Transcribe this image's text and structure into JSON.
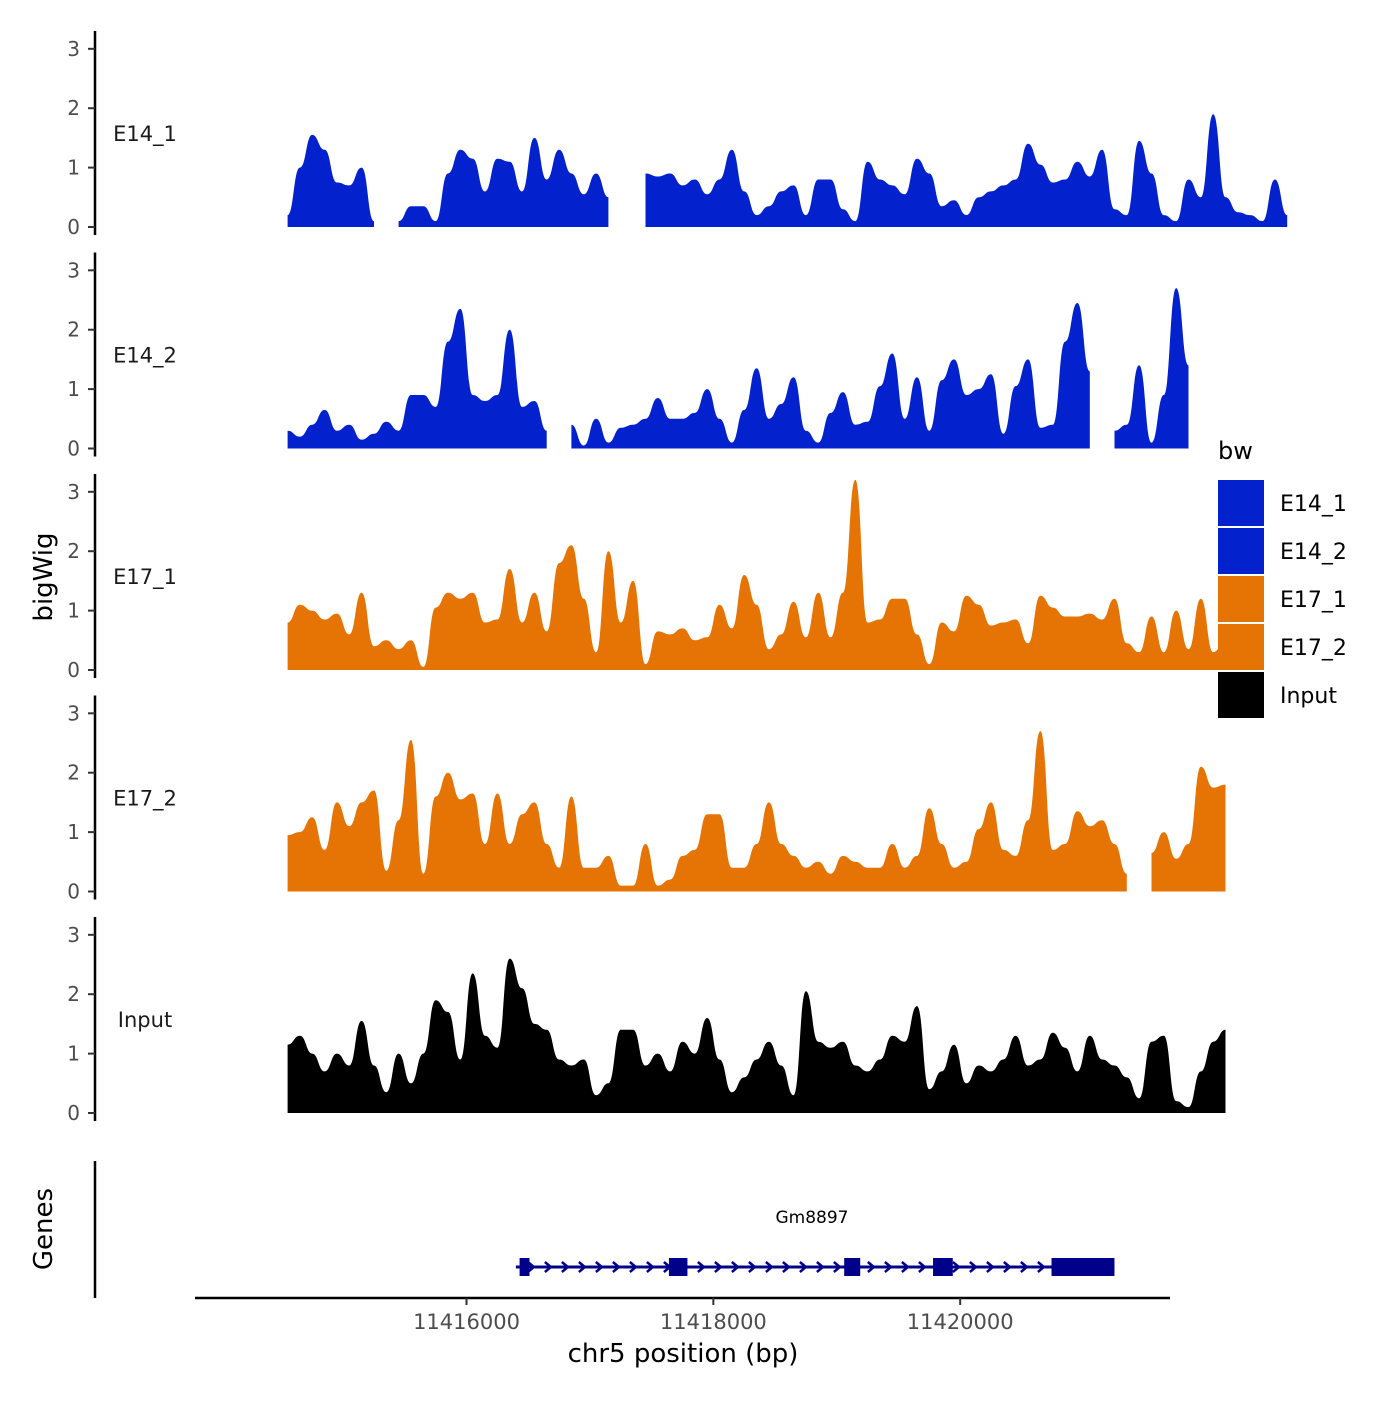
{
  "chart_data": {
    "type": "area",
    "ylabel": "bigWig",
    "xlabel": "chr5 position (bp)",
    "genes_label": "Genes",
    "ylim": [
      0,
      3.3
    ],
    "y_ticks": [
      "0",
      "1",
      "2",
      "3"
    ],
    "x_range": [
      11413800,
      11421700
    ],
    "x_ticks": [
      {
        "value": 11416000,
        "label": "11416000"
      },
      {
        "value": 11418000,
        "label": "11418000"
      },
      {
        "value": 11420000,
        "label": "11420000"
      }
    ],
    "track_start": 11414550,
    "track_step": 100,
    "legend": {
      "title": "bw",
      "entries": [
        {
          "label": "E14_1",
          "color": "#0322CD"
        },
        {
          "label": "E14_2",
          "color": "#0322CD"
        },
        {
          "label": "E17_1",
          "color": "#E57405"
        },
        {
          "label": "E17_2",
          "color": "#E57405"
        },
        {
          "label": "Input",
          "color": "#000000"
        }
      ]
    },
    "series": [
      {
        "name": "E14_1",
        "color": "#0322CD",
        "values": [
          0.2,
          1.0,
          1.55,
          1.3,
          0.75,
          0.7,
          1.0,
          0.1,
          null,
          0.1,
          0.35,
          0.35,
          0.1,
          0.9,
          1.3,
          1.15,
          0.6,
          1.15,
          1.1,
          0.6,
          1.5,
          0.8,
          1.3,
          0.9,
          0.55,
          0.9,
          0.5,
          null,
          null,
          0.9,
          0.85,
          0.9,
          0.7,
          0.8,
          0.55,
          0.8,
          1.3,
          0.6,
          0.2,
          0.35,
          0.6,
          0.7,
          0.2,
          0.8,
          0.8,
          0.3,
          0.1,
          1.1,
          0.8,
          0.7,
          0.55,
          1.15,
          0.9,
          0.35,
          0.45,
          0.2,
          0.5,
          0.6,
          0.7,
          0.8,
          1.4,
          1.05,
          0.75,
          0.8,
          1.1,
          0.85,
          1.3,
          0.3,
          0.2,
          1.45,
          0.9,
          0.2,
          0.1,
          0.8,
          0.5,
          1.9,
          0.5,
          0.25,
          0.2,
          0.1,
          0.8,
          0.2
        ]
      },
      {
        "name": "E14_2",
        "color": "#0322CD",
        "values": [
          0.3,
          0.2,
          0.4,
          0.65,
          0.3,
          0.4,
          0.15,
          0.25,
          0.45,
          0.3,
          0.9,
          0.9,
          0.7,
          1.8,
          2.35,
          0.9,
          0.8,
          0.9,
          2.0,
          0.7,
          0.8,
          0.3,
          null,
          0.4,
          0.05,
          0.5,
          0.1,
          0.35,
          0.4,
          0.5,
          0.85,
          0.5,
          0.5,
          0.6,
          1.0,
          0.5,
          0.1,
          0.65,
          1.35,
          0.5,
          0.75,
          1.2,
          0.3,
          0.1,
          0.6,
          0.95,
          0.4,
          0.45,
          1.05,
          1.6,
          0.5,
          1.2,
          0.3,
          1.15,
          1.5,
          0.9,
          1.0,
          1.25,
          0.25,
          1.05,
          1.5,
          0.35,
          0.4,
          1.8,
          2.45,
          1.3,
          null,
          0.3,
          0.4,
          1.4,
          0.1,
          0.9,
          2.7,
          1.4
        ]
      },
      {
        "name": "E17_1",
        "color": "#E57405",
        "values": [
          0.8,
          1.1,
          1.0,
          0.85,
          0.95,
          0.6,
          1.3,
          0.4,
          0.5,
          0.35,
          0.5,
          0.05,
          1.05,
          1.3,
          1.2,
          1.3,
          0.8,
          0.85,
          1.7,
          0.8,
          1.3,
          0.65,
          1.8,
          2.1,
          1.2,
          0.3,
          2.0,
          0.8,
          1.5,
          0.1,
          0.65,
          0.6,
          0.7,
          0.5,
          0.55,
          1.1,
          0.7,
          1.6,
          1.1,
          0.35,
          0.6,
          1.15,
          0.55,
          1.3,
          0.55,
          1.3,
          3.2,
          0.8,
          0.85,
          1.2,
          1.2,
          0.6,
          0.1,
          0.8,
          0.65,
          1.25,
          1.1,
          0.75,
          0.8,
          0.85,
          0.45,
          1.25,
          1.05,
          0.9,
          0.9,
          0.95,
          0.85,
          1.2,
          0.45,
          0.3,
          0.9,
          0.3,
          1.0,
          0.35,
          1.2,
          0.3,
          0.5,
          0.2
        ]
      },
      {
        "name": "E17_2",
        "color": "#E57405",
        "values": [
          0.95,
          1.0,
          1.25,
          0.7,
          1.5,
          1.1,
          1.5,
          1.7,
          0.35,
          1.2,
          2.55,
          0.3,
          1.6,
          2.0,
          1.55,
          1.65,
          0.8,
          1.65,
          0.8,
          1.3,
          1.5,
          0.8,
          0.4,
          1.6,
          0.4,
          0.4,
          0.6,
          0.1,
          0.1,
          0.8,
          0.1,
          0.2,
          0.6,
          0.7,
          1.3,
          1.3,
          0.4,
          0.4,
          0.8,
          1.5,
          0.8,
          0.6,
          0.4,
          0.5,
          0.3,
          0.6,
          0.5,
          0.4,
          0.4,
          0.8,
          0.4,
          0.6,
          1.4,
          0.8,
          0.4,
          0.5,
          1.05,
          1.5,
          0.7,
          0.6,
          1.2,
          2.7,
          0.7,
          0.8,
          1.35,
          1.1,
          1.2,
          0.8,
          0.3,
          null,
          0.65,
          1.0,
          0.55,
          0.8,
          2.1,
          1.75,
          1.8
        ]
      },
      {
        "name": "Input",
        "color": "#000000",
        "values": [
          1.15,
          1.3,
          1.0,
          0.7,
          1.0,
          0.8,
          1.55,
          0.8,
          0.35,
          1.0,
          0.5,
          1.0,
          1.9,
          1.7,
          0.9,
          2.35,
          1.3,
          1.1,
          2.6,
          2.1,
          1.5,
          1.4,
          0.9,
          0.8,
          0.9,
          0.3,
          0.5,
          1.4,
          1.4,
          0.8,
          1.0,
          0.7,
          1.2,
          1.0,
          1.6,
          0.9,
          0.35,
          0.6,
          0.9,
          1.2,
          0.8,
          0.3,
          2.05,
          1.2,
          1.1,
          1.2,
          0.8,
          0.7,
          0.9,
          1.3,
          1.2,
          1.8,
          0.4,
          0.7,
          1.15,
          0.5,
          0.8,
          0.7,
          0.9,
          1.3,
          0.8,
          0.9,
          1.35,
          1.1,
          0.7,
          1.3,
          0.9,
          0.8,
          0.6,
          0.25,
          1.2,
          1.3,
          0.2,
          0.1,
          0.7,
          1.2,
          1.4
        ]
      }
    ],
    "gene": {
      "name": "Gm8897",
      "start": 11416400,
      "end": 11421250,
      "strand": "+",
      "exons": [
        [
          11416430,
          11416510
        ],
        [
          11417640,
          11417790
        ],
        [
          11419060,
          11419190
        ],
        [
          11419780,
          11419940
        ],
        [
          11420740,
          11421250
        ]
      ],
      "color": "#00008B"
    }
  }
}
